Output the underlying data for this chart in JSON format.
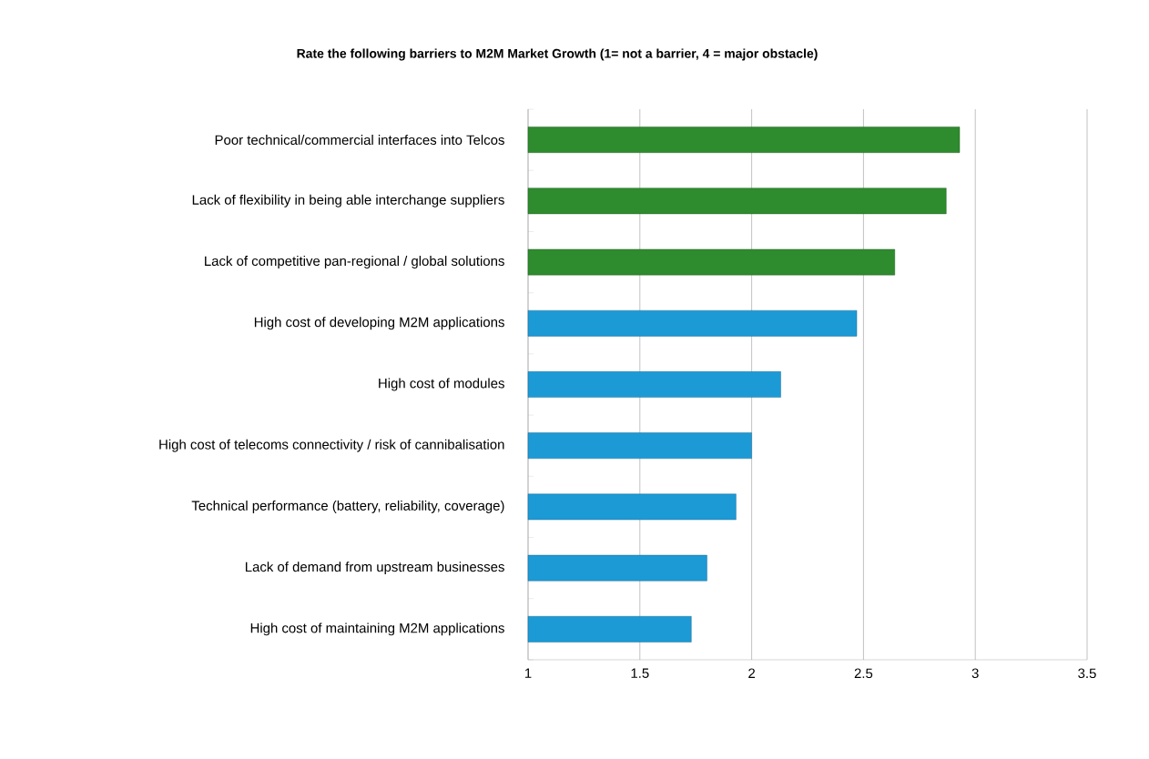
{
  "chart_data": {
    "type": "bar",
    "orientation": "horizontal",
    "title": "Rate the following barriers to M2M Market Growth (1= not a barrier, 4 = major obstacle)",
    "categories": [
      "Poor technical/commercial interfaces into Telcos",
      "Lack of flexibility in being able interchange suppliers",
      "Lack of competitive pan-regional / global solutions",
      "High cost of developing M2M applications",
      "High cost of modules",
      "High cost of telecoms connectivity / risk of cannibalisation",
      "Technical performance (battery, reliability, coverage)",
      "Lack of demand from upstream businesses",
      "High cost of maintaining M2M applications"
    ],
    "values": [
      2.93,
      2.87,
      2.64,
      2.47,
      2.13,
      2.0,
      1.93,
      1.8,
      1.73
    ],
    "colors": [
      "#2e8b2e",
      "#2e8b2e",
      "#2e8b2e",
      "#1c9ad6",
      "#1c9ad6",
      "#1c9ad6",
      "#1c9ad6",
      "#1c9ad6",
      "#1c9ad6"
    ],
    "xlim": [
      1,
      3.5
    ],
    "xticks": [
      1,
      1.5,
      2,
      2.5,
      3,
      3.5
    ],
    "grid": "x"
  }
}
